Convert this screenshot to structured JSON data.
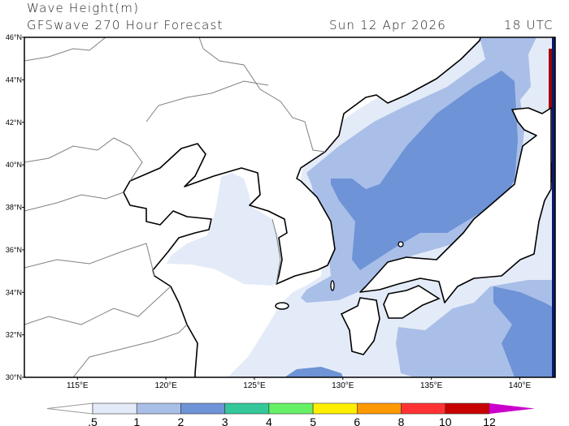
{
  "header": {
    "title": "Wave Height(m)",
    "subtitle": "GFSwave 270 Hour Forecast",
    "date": "Sun 12 Apr 2026",
    "time": "18 UTC"
  },
  "map": {
    "lon_range": [
      112,
      142
    ],
    "lat_range": [
      30,
      46
    ],
    "lat_labels": [
      {
        "value": 30,
        "text": "30°N"
      },
      {
        "value": 32,
        "text": "32°N"
      },
      {
        "value": 34,
        "text": "34°N"
      },
      {
        "value": 36,
        "text": "36°N"
      },
      {
        "value": 38,
        "text": "38°N"
      },
      {
        "value": 40,
        "text": "40°N"
      },
      {
        "value": 42,
        "text": "42°N"
      },
      {
        "value": 44,
        "text": "44°N"
      },
      {
        "value": 46,
        "text": "46°N"
      }
    ],
    "lon_labels": [
      {
        "value": 115,
        "text": "115°E"
      },
      {
        "value": 120,
        "text": "120°E"
      },
      {
        "value": 125,
        "text": "125°E"
      },
      {
        "value": 130,
        "text": "130°E"
      },
      {
        "value": 135,
        "text": "135°E"
      },
      {
        "value": 140,
        "text": "140°E"
      }
    ],
    "land_color": "#ffffff",
    "coast_color": "#000000",
    "border_color": "#808080"
  },
  "colorbar": {
    "labels": [
      ".5",
      "1",
      "2",
      "3",
      "4",
      "5",
      "6",
      "8",
      "10",
      "12"
    ],
    "colors": [
      "#ffffff",
      "#e4ebf8",
      "#a9bfe8",
      "#6e93d6",
      "#33c79a",
      "#66f066",
      "#ffee00",
      "#ff9900",
      "#ff3333",
      "#c80000",
      "#cc00cc"
    ]
  }
}
